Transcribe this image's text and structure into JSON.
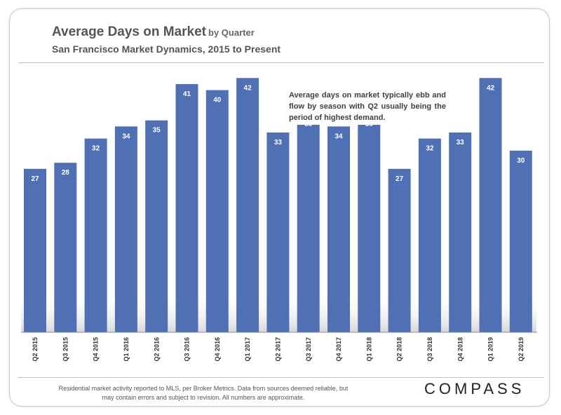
{
  "header": {
    "title": "Average Days on Market",
    "title_suffix": "by Quarter",
    "subtitle": "San Francisco Market Dynamics, 2015 to Present"
  },
  "annotation": "Average days on market typically ebb and flow by season with Q2 usually being the period of highest demand.",
  "footnote": "Residential market activity reported to MLS, per Broker Metrics. Data from sources deemed reliable, but may contain errors and subject to revision. All numbers are approximate.",
  "logo": "COMPASS",
  "colors": {
    "bar": "#4f70b5",
    "label": "#ffffff",
    "axis": "#333333"
  },
  "chart_data": {
    "type": "bar",
    "title": "Average Days on Market by Quarter",
    "subtitle": "San Francisco Market Dynamics, 2015 to Present",
    "xlabel": "",
    "ylabel": "",
    "ylim": [
      0,
      44
    ],
    "grid": false,
    "categories": [
      "Q2 2015",
      "Q3 2015",
      "Q4 2015",
      "Q1 2016",
      "Q2 2016",
      "Q3 2016",
      "Q4 2016",
      "Q1 2017",
      "Q2 2017",
      "Q3 2017",
      "Q4 2017",
      "Q1 2018",
      "Q2 2018",
      "Q3 2018",
      "Q4 2018",
      "Q1 2019",
      "Q2 2019"
    ],
    "values": [
      27,
      28,
      32,
      34,
      35,
      41,
      40,
      42,
      33,
      36,
      34,
      36,
      27,
      32,
      33,
      42,
      30
    ],
    "data_labels": [
      "27",
      "28",
      "32",
      "34",
      "35",
      "41",
      "40",
      "42",
      "33",
      "36",
      "34",
      "36",
      "27",
      "32",
      "33",
      "42",
      "30"
    ]
  }
}
